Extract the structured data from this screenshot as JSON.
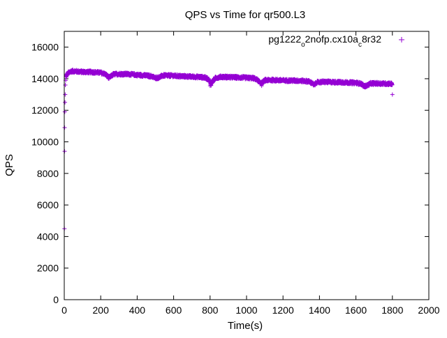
{
  "chart_data": {
    "type": "scatter",
    "title": "QPS vs Time for qr500.L3",
    "xlabel": "Time(s)",
    "ylabel": "QPS",
    "xlim": [
      0,
      2000
    ],
    "ylim": [
      0,
      17000
    ],
    "xticks": [
      0,
      200,
      400,
      600,
      800,
      1000,
      1200,
      1400,
      1600,
      1800,
      2000
    ],
    "yticks": [
      0,
      2000,
      4000,
      6000,
      8000,
      10000,
      12000,
      14000,
      16000
    ],
    "grid": false,
    "legend_position": "top-right",
    "marker": "+",
    "series": [
      {
        "name": "pg1222_o2nofp.cx10a_c8r32",
        "legend_parts": [
          {
            "text": "pg1222",
            "sub": false
          },
          {
            "text": "o",
            "sub": true
          },
          {
            "text": "2nofp.cx10a",
            "sub": false
          },
          {
            "text": "c",
            "sub": true
          },
          {
            "text": "8r32",
            "sub": false
          }
        ],
        "color": "#9400d3",
        "startup_points": [
          [
            1,
            4500
          ],
          [
            2,
            9400
          ],
          [
            2,
            10900
          ],
          [
            3,
            11900
          ],
          [
            4,
            12500
          ],
          [
            5,
            13000
          ],
          [
            6,
            13600
          ],
          [
            8,
            13900
          ],
          [
            10,
            14100
          ]
        ],
        "profile": [
          [
            10,
            14150
          ],
          [
            20,
            14350
          ],
          [
            40,
            14480
          ],
          [
            60,
            14470
          ],
          [
            100,
            14430
          ],
          [
            150,
            14420
          ],
          [
            200,
            14380
          ],
          [
            220,
            14320
          ],
          [
            235,
            14200
          ],
          [
            245,
            14050
          ],
          [
            255,
            14150
          ],
          [
            270,
            14280
          ],
          [
            300,
            14300
          ],
          [
            350,
            14290
          ],
          [
            400,
            14240
          ],
          [
            450,
            14200
          ],
          [
            480,
            14150
          ],
          [
            500,
            14050
          ],
          [
            520,
            14080
          ],
          [
            540,
            14200
          ],
          [
            580,
            14200
          ],
          [
            620,
            14170
          ],
          [
            660,
            14150
          ],
          [
            700,
            14130
          ],
          [
            740,
            14110
          ],
          [
            770,
            14080
          ],
          [
            790,
            13980
          ],
          [
            800,
            13750
          ],
          [
            805,
            13650
          ],
          [
            812,
            13800
          ],
          [
            830,
            14050
          ],
          [
            860,
            14120
          ],
          [
            900,
            14100
          ],
          [
            950,
            14080
          ],
          [
            1000,
            14060
          ],
          [
            1040,
            14030
          ],
          [
            1060,
            13920
          ],
          [
            1075,
            13720
          ],
          [
            1085,
            13740
          ],
          [
            1100,
            13900
          ],
          [
            1150,
            13920
          ],
          [
            1200,
            13890
          ],
          [
            1250,
            13880
          ],
          [
            1300,
            13870
          ],
          [
            1340,
            13830
          ],
          [
            1360,
            13720
          ],
          [
            1370,
            13600
          ],
          [
            1385,
            13770
          ],
          [
            1420,
            13800
          ],
          [
            1460,
            13790
          ],
          [
            1500,
            13780
          ],
          [
            1550,
            13760
          ],
          [
            1600,
            13740
          ],
          [
            1630,
            13680
          ],
          [
            1645,
            13520
          ],
          [
            1660,
            13560
          ],
          [
            1680,
            13700
          ],
          [
            1720,
            13700
          ],
          [
            1760,
            13690
          ],
          [
            1800,
            13680
          ]
        ],
        "outliers": [
          [
            800,
            13550
          ],
          [
            1083,
            13550
          ],
          [
            1800,
            13000
          ]
        ]
      }
    ]
  }
}
